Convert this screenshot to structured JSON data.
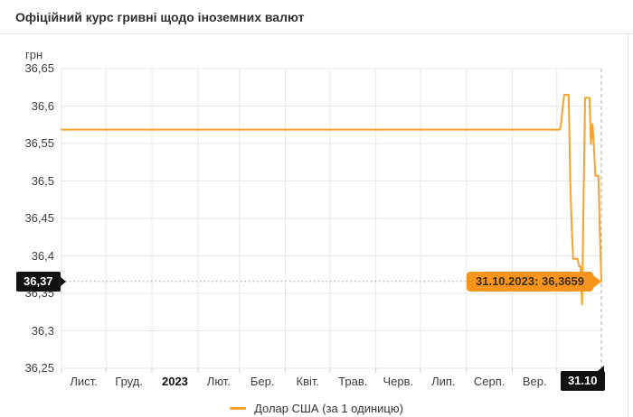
{
  "header": {
    "title": "Офіційний курс гривні щодо іноземних валют"
  },
  "chart_data": {
    "type": "line",
    "title": "Офіційний курс гривні щодо іноземних валют",
    "ylabel": "грн",
    "ylim": [
      36.25,
      36.65
    ],
    "grid": true,
    "yticks": [
      {
        "value": 36.65,
        "label": "36,65"
      },
      {
        "value": 36.6,
        "label": "36,6"
      },
      {
        "value": 36.55,
        "label": "36,55"
      },
      {
        "value": 36.5,
        "label": "36,5"
      },
      {
        "value": 36.45,
        "label": "36,45"
      },
      {
        "value": 36.4,
        "label": "36,4"
      },
      {
        "value": 36.35,
        "label": "36,35"
      },
      {
        "value": 36.3,
        "label": "36,3"
      },
      {
        "value": 36.25,
        "label": "36,25"
      }
    ],
    "x_axis": {
      "start_date": "01.11.2022",
      "end_date": "31.10.2023",
      "month_boundaries": [
        "01.11.2022",
        "01.12.2022",
        "01.01.2023",
        "01.02.2023",
        "01.03.2023",
        "01.04.2023",
        "01.05.2023",
        "01.06.2023",
        "01.07.2023",
        "01.08.2023",
        "01.09.2023",
        "01.10.2023"
      ],
      "month_labels": [
        "Лист.",
        "Груд.",
        "2023",
        "Лют.",
        "Бер.",
        "Квіт.",
        "Трав.",
        "Черв.",
        "Лип.",
        "Серп.",
        "Вер."
      ]
    },
    "series": [
      {
        "name": "Долар США (за 1 одиницю)",
        "color": "#f6a22b",
        "points": [
          [
            "01.11.2022",
            36.5686
          ],
          [
            "01.12.2022",
            36.5686
          ],
          [
            "01.01.2023",
            36.5686
          ],
          [
            "01.02.2023",
            36.5686
          ],
          [
            "01.03.2023",
            36.5686
          ],
          [
            "01.04.2023",
            36.5686
          ],
          [
            "01.05.2023",
            36.5686
          ],
          [
            "01.06.2023",
            36.5686
          ],
          [
            "01.07.2023",
            36.5686
          ],
          [
            "01.08.2023",
            36.5686
          ],
          [
            "01.09.2023",
            36.5686
          ],
          [
            "01.10.2023",
            36.5686
          ],
          [
            "03.10.2023",
            36.5686
          ],
          [
            "04.10.2023",
            36.578
          ],
          [
            "05.10.2023",
            36.6
          ],
          [
            "06.10.2023",
            36.615
          ],
          [
            "09.10.2023",
            36.615
          ],
          [
            "10.10.2023",
            36.5
          ],
          [
            "11.10.2023",
            36.44
          ],
          [
            "12.10.2023",
            36.396
          ],
          [
            "15.10.2023",
            36.396
          ],
          [
            "16.10.2023",
            36.386
          ],
          [
            "17.10.2023",
            36.386
          ],
          [
            "18.10.2023",
            36.335
          ],
          [
            "19.10.2023",
            36.47
          ],
          [
            "20.10.2023",
            36.611
          ],
          [
            "23.10.2023",
            36.611
          ],
          [
            "24.10.2023",
            36.549
          ],
          [
            "25.10.2023",
            36.576
          ],
          [
            "26.10.2023",
            36.545
          ],
          [
            "27.10.2023",
            36.507
          ],
          [
            "29.10.2023",
            36.507
          ],
          [
            "30.10.2023",
            36.43
          ],
          [
            "31.10.2023",
            36.3659
          ]
        ]
      }
    ],
    "crosshair": {
      "date": "31.10.2023",
      "value": 36.3659,
      "y_axis_badge": "36,37",
      "x_axis_badge": "31.10",
      "tooltip": "31.10.2023: 36,3659"
    }
  },
  "legend": {
    "label": "Долар США (за 1 одиницю)",
    "color": "#f6a22b"
  },
  "colors": {
    "line": "#f6a22b",
    "tooltip_bg": "#f7941e",
    "badge_bg": "#111111",
    "grid": "#e7e7e7",
    "text": "#333333"
  }
}
